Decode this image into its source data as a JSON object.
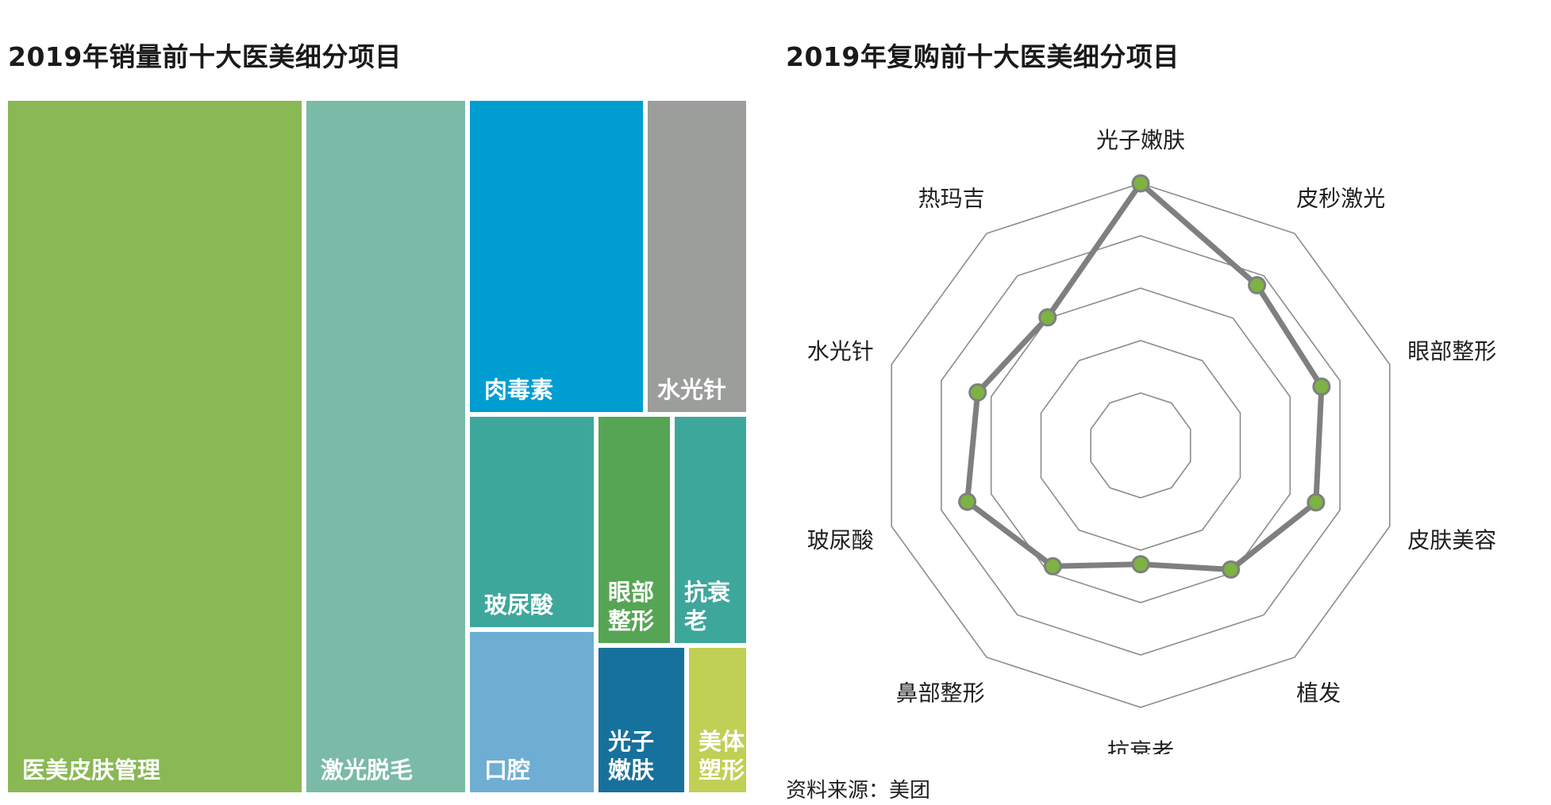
{
  "left_title": "2019年销量前十大医美细分项目",
  "right_title": "2019年复购前十大医美细分项目",
  "source": "资料来源：美团",
  "chart_data": [
    {
      "type": "treemap",
      "title": "2019年销量前十大医美细分项目",
      "items": [
        {
          "label": "医美皮肤管理",
          "color": "#89b854"
        },
        {
          "label": "激光脱毛",
          "color": "#7bbaa7"
        },
        {
          "label": "肉毒素",
          "color": "#009dd1"
        },
        {
          "label": "水光针",
          "color": "#9c9e9b"
        },
        {
          "label": "玻尿酸",
          "color": "#3ea79c"
        },
        {
          "label": "眼部\n整形",
          "color": "#56a554"
        },
        {
          "label": "抗衰老",
          "color": "#3ea79c"
        },
        {
          "label": "口腔",
          "color": "#6eaed3"
        },
        {
          "label": "光子\n嫩肤",
          "color": "#17719d"
        },
        {
          "label": "美体\n塑形",
          "color": "#c0d055"
        }
      ]
    },
    {
      "type": "radar",
      "title": "2019年复购前十大医美细分项目",
      "categories": [
        "光子嫩肤",
        "皮秒激光",
        "眼部整形",
        "皮肤美容",
        "植发",
        "抗衰老",
        "鼻部整形",
        "玻尿酸",
        "水光针",
        "热玛吉"
      ],
      "values": [
        5.0,
        3.78,
        3.63,
        3.52,
        2.93,
        2.27,
        2.85,
        3.48,
        3.27,
        3.02
      ],
      "scale_max": 5,
      "rings": 5,
      "line_color": "#7f7f7f",
      "marker_color": "#7cb342",
      "grid_color": "#8c8c8c"
    }
  ]
}
